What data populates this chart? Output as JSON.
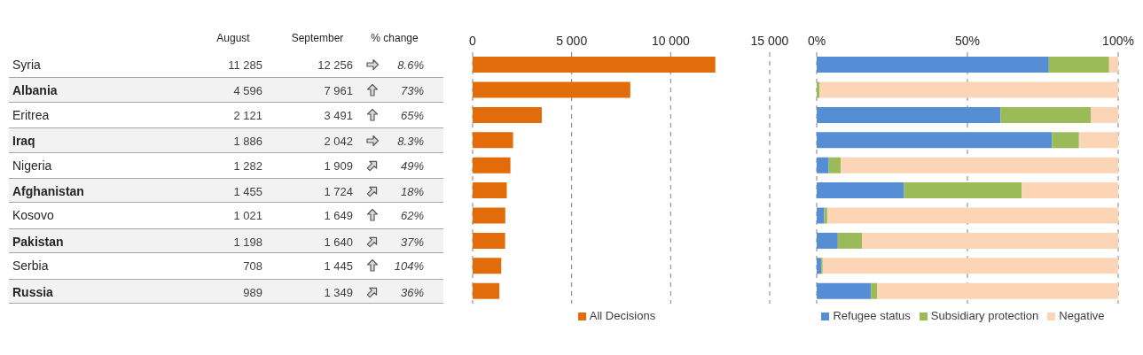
{
  "chart_data": [
    {
      "type": "other",
      "categories": [
        "Syria",
        "Albania",
        "Eritrea",
        "Iraq",
        "Nigeria",
        "Afghanistan",
        "Kosovo",
        "Pakistan",
        "Serbia",
        "Russia"
      ],
      "series": [
        {
          "name": "August",
          "values": [
            11285,
            4596,
            2121,
            1886,
            1282,
            1455,
            1021,
            1198,
            708,
            989
          ],
          "value_labels": [
            "11 285",
            "4 596",
            "2 121",
            "1 886",
            "1 282",
            "1 455",
            "1 021",
            "1 198",
            "708",
            "989"
          ]
        },
        {
          "name": "September",
          "values": [
            12256,
            7961,
            3491,
            2042,
            1909,
            1724,
            1649,
            1640,
            1445,
            1349
          ],
          "value_labels": [
            "12 256",
            "7 961",
            "3 491",
            "2 042",
            "1 909",
            "1 724",
            "1 649",
            "1 640",
            "1 445",
            "1 349"
          ]
        },
        {
          "name": "% change",
          "values": [
            8.6,
            73,
            65,
            8.3,
            49,
            18,
            62,
            37,
            104,
            36
          ],
          "value_labels": [
            "8.6%",
            "73%",
            "65%",
            "8.3%",
            "49%",
            "18%",
            "62%",
            "37%",
            "104%",
            "36%"
          ]
        }
      ]
    },
    {
      "type": "bar",
      "orientation": "horizontal",
      "categories": [
        null,
        null,
        null,
        null,
        null,
        null,
        null,
        null,
        null,
        null
      ],
      "tick_labels": "x",
      "series": [
        {
          "name": "All Decisions",
          "color": "#e36c0a",
          "values": [
            12256,
            7961,
            3491,
            2042,
            1909,
            1724,
            1649,
            1640,
            1445,
            1349
          ]
        }
      ],
      "xlim": [
        0,
        15000
      ],
      "xticks": [
        0,
        {
          "value": 5000,
          "label": "5 000"
        },
        {
          "value": 10000,
          "label": "10 000"
        },
        {
          "value": 15000,
          "label": "15 000"
        }
      ],
      "grid": "x",
      "legend": "bottom"
    },
    {
      "type": "bar",
      "orientation": "horizontal",
      "stacked": true,
      "categories": [
        null,
        null,
        null,
        null,
        null,
        null,
        null,
        null,
        null,
        null
      ],
      "tick_labels": "x",
      "series": [
        {
          "name": "Refugee status",
          "color": "#558ed5",
          "values": [
            77,
            0,
            61,
            78,
            4,
            29,
            2.5,
            7,
            1.5,
            18
          ]
        },
        {
          "name": "Subsidiary protection",
          "color": "#9bbb59",
          "values": [
            20,
            1,
            30,
            9,
            4,
            39,
            1,
            8,
            0.5,
            2
          ]
        },
        {
          "name": "Negative",
          "color": "#fbd5b5",
          "values": [
            3,
            99,
            9,
            13,
            92,
            32,
            96.5,
            85,
            98,
            80
          ]
        }
      ],
      "xlim": [
        0,
        100
      ],
      "xticks": [
        {
          "value": 0,
          "label": "0%"
        },
        {
          "value": 50,
          "label": "50%"
        },
        {
          "value": 100,
          "label": "100%"
        }
      ],
      "grid": "x",
      "legend": "bottom"
    }
  ]
}
